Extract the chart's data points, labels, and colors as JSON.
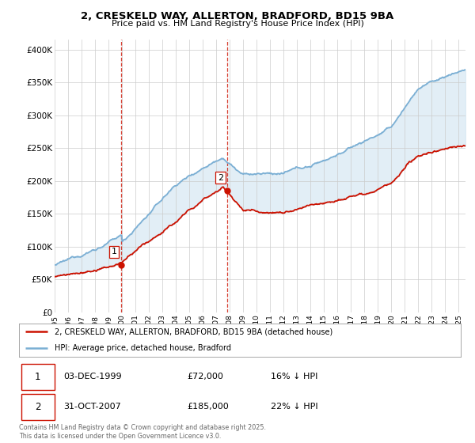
{
  "title_line1": "2, CRESKELD WAY, ALLERTON, BRADFORD, BD15 9BA",
  "title_line2": "Price paid vs. HM Land Registry's House Price Index (HPI)",
  "ylabel_ticks": [
    "£0",
    "£50K",
    "£100K",
    "£150K",
    "£200K",
    "£250K",
    "£300K",
    "£350K",
    "£400K"
  ],
  "ytick_values": [
    0,
    50000,
    100000,
    150000,
    200000,
    250000,
    300000,
    350000,
    400000
  ],
  "ylim": [
    0,
    415000
  ],
  "xlim_start": 1995.0,
  "xlim_end": 2025.5,
  "xticks": [
    1995,
    1996,
    1997,
    1998,
    1999,
    2000,
    2001,
    2002,
    2003,
    2004,
    2005,
    2006,
    2007,
    2008,
    2009,
    2010,
    2011,
    2012,
    2013,
    2014,
    2015,
    2016,
    2017,
    2018,
    2019,
    2020,
    2021,
    2022,
    2023,
    2024,
    2025
  ],
  "hpi_color": "#7bafd4",
  "property_color": "#cc1100",
  "fill_color": "#d0e4f0",
  "dashed_color": "#cc1100",
  "purchase1_x": 1999.92,
  "purchase1_y": 72000,
  "purchase2_x": 2007.83,
  "purchase2_y": 185000,
  "legend_property": "2, CRESKELD WAY, ALLERTON, BRADFORD, BD15 9BA (detached house)",
  "legend_hpi": "HPI: Average price, detached house, Bradford",
  "table_row1": [
    "1",
    "03-DEC-1999",
    "£72,000",
    "16% ↓ HPI"
  ],
  "table_row2": [
    "2",
    "31-OCT-2007",
    "£185,000",
    "22% ↓ HPI"
  ],
  "footer": "Contains HM Land Registry data © Crown copyright and database right 2025.\nThis data is licensed under the Open Government Licence v3.0.",
  "background_color": "#ffffff",
  "grid_color": "#cccccc"
}
